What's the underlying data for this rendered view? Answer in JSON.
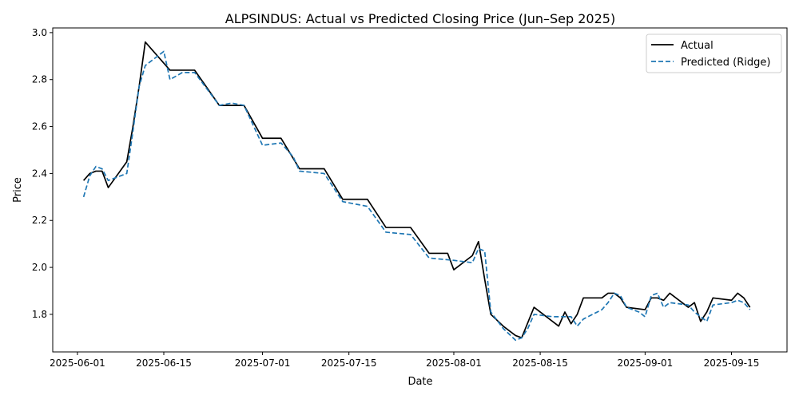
{
  "chart_data": {
    "type": "line",
    "title": "ALPSINDUS: Actual vs Predicted Closing Price (Jun–Sep 2025)",
    "xlabel": "Date",
    "ylabel": "Price",
    "xlim": [
      "2025-05-28",
      "2025-09-24"
    ],
    "ylim": [
      1.64,
      3.02
    ],
    "x_ticks": [
      "2025-06-01",
      "2025-06-15",
      "2025-07-01",
      "2025-07-15",
      "2025-08-01",
      "2025-08-15",
      "2025-09-01",
      "2025-09-15"
    ],
    "y_ticks": [
      1.8,
      2.0,
      2.2,
      2.4,
      2.6,
      2.8,
      3.0
    ],
    "grid": false,
    "legend_position": "top-right",
    "series": [
      {
        "name": "Actual",
        "color": "#000000",
        "style": "solid",
        "points": [
          [
            "2025-06-02",
            2.37
          ],
          [
            "2025-06-03",
            2.4
          ],
          [
            "2025-06-04",
            2.41
          ],
          [
            "2025-06-05",
            2.41
          ],
          [
            "2025-06-06",
            2.34
          ],
          [
            "2025-06-09",
            2.45
          ],
          [
            "2025-06-10",
            2.6
          ],
          [
            "2025-06-11",
            2.77
          ],
          [
            "2025-06-12",
            2.96
          ],
          [
            "2025-06-16",
            2.84
          ],
          [
            "2025-06-20",
            2.84
          ],
          [
            "2025-06-24",
            2.69
          ],
          [
            "2025-06-28",
            2.69
          ],
          [
            "2025-07-01",
            2.55
          ],
          [
            "2025-07-04",
            2.55
          ],
          [
            "2025-07-07",
            2.42
          ],
          [
            "2025-07-11",
            2.42
          ],
          [
            "2025-07-14",
            2.29
          ],
          [
            "2025-07-18",
            2.29
          ],
          [
            "2025-07-21",
            2.17
          ],
          [
            "2025-07-25",
            2.17
          ],
          [
            "2025-07-28",
            2.06
          ],
          [
            "2025-07-31",
            2.06
          ],
          [
            "2025-08-01",
            1.99
          ],
          [
            "2025-08-04",
            2.05
          ],
          [
            "2025-08-05",
            2.11
          ],
          [
            "2025-08-06",
            1.95
          ],
          [
            "2025-08-07",
            1.8
          ],
          [
            "2025-08-09",
            1.75
          ],
          [
            "2025-08-11",
            1.71
          ],
          [
            "2025-08-12",
            1.7
          ],
          [
            "2025-08-14",
            1.83
          ],
          [
            "2025-08-18",
            1.75
          ],
          [
            "2025-08-19",
            1.81
          ],
          [
            "2025-08-20",
            1.76
          ],
          [
            "2025-08-21",
            1.8
          ],
          [
            "2025-08-22",
            1.87
          ],
          [
            "2025-08-25",
            1.87
          ],
          [
            "2025-08-26",
            1.89
          ],
          [
            "2025-08-27",
            1.89
          ],
          [
            "2025-08-28",
            1.87
          ],
          [
            "2025-08-29",
            1.83
          ],
          [
            "2025-09-01",
            1.82
          ],
          [
            "2025-09-02",
            1.87
          ],
          [
            "2025-09-03",
            1.87
          ],
          [
            "2025-09-04",
            1.86
          ],
          [
            "2025-09-05",
            1.89
          ],
          [
            "2025-09-08",
            1.83
          ],
          [
            "2025-09-09",
            1.85
          ],
          [
            "2025-09-10",
            1.77
          ],
          [
            "2025-09-11",
            1.81
          ],
          [
            "2025-09-12",
            1.87
          ],
          [
            "2025-09-15",
            1.86
          ],
          [
            "2025-09-16",
            1.89
          ],
          [
            "2025-09-17",
            1.87
          ],
          [
            "2025-09-18",
            1.83
          ]
        ]
      },
      {
        "name": "Predicted (Ridge)",
        "color": "#1f77b4",
        "style": "dashed",
        "points": [
          [
            "2025-06-02",
            2.3
          ],
          [
            "2025-06-03",
            2.39
          ],
          [
            "2025-06-04",
            2.43
          ],
          [
            "2025-06-05",
            2.42
          ],
          [
            "2025-06-06",
            2.37
          ],
          [
            "2025-06-09",
            2.4
          ],
          [
            "2025-06-10",
            2.58
          ],
          [
            "2025-06-11",
            2.77
          ],
          [
            "2025-06-12",
            2.86
          ],
          [
            "2025-06-15",
            2.92
          ],
          [
            "2025-06-16",
            2.8
          ],
          [
            "2025-06-18",
            2.83
          ],
          [
            "2025-06-20",
            2.83
          ],
          [
            "2025-06-22",
            2.76
          ],
          [
            "2025-06-24",
            2.69
          ],
          [
            "2025-06-26",
            2.7
          ],
          [
            "2025-06-28",
            2.69
          ],
          [
            "2025-07-01",
            2.52
          ],
          [
            "2025-07-04",
            2.53
          ],
          [
            "2025-07-06",
            2.47
          ],
          [
            "2025-07-07",
            2.41
          ],
          [
            "2025-07-11",
            2.4
          ],
          [
            "2025-07-14",
            2.28
          ],
          [
            "2025-07-18",
            2.26
          ],
          [
            "2025-07-21",
            2.15
          ],
          [
            "2025-07-25",
            2.14
          ],
          [
            "2025-07-28",
            2.04
          ],
          [
            "2025-08-01",
            2.03
          ],
          [
            "2025-08-04",
            2.02
          ],
          [
            "2025-08-05",
            2.08
          ],
          [
            "2025-08-06",
            2.07
          ],
          [
            "2025-08-07",
            1.81
          ],
          [
            "2025-08-09",
            1.74
          ],
          [
            "2025-08-11",
            1.69
          ],
          [
            "2025-08-12",
            1.7
          ],
          [
            "2025-08-13",
            1.74
          ],
          [
            "2025-08-14",
            1.8
          ],
          [
            "2025-08-17",
            1.79
          ],
          [
            "2025-08-19",
            1.79
          ],
          [
            "2025-08-20",
            1.79
          ],
          [
            "2025-08-21",
            1.75
          ],
          [
            "2025-08-22",
            1.78
          ],
          [
            "2025-08-25",
            1.82
          ],
          [
            "2025-08-26",
            1.85
          ],
          [
            "2025-08-27",
            1.89
          ],
          [
            "2025-08-28",
            1.88
          ],
          [
            "2025-08-29",
            1.83
          ],
          [
            "2025-08-31",
            1.81
          ],
          [
            "2025-09-01",
            1.79
          ],
          [
            "2025-09-02",
            1.88
          ],
          [
            "2025-09-03",
            1.89
          ],
          [
            "2025-09-04",
            1.83
          ],
          [
            "2025-09-05",
            1.85
          ],
          [
            "2025-09-08",
            1.84
          ],
          [
            "2025-09-09",
            1.81
          ],
          [
            "2025-09-10",
            1.79
          ],
          [
            "2025-09-11",
            1.77
          ],
          [
            "2025-09-12",
            1.84
          ],
          [
            "2025-09-15",
            1.85
          ],
          [
            "2025-09-16",
            1.86
          ],
          [
            "2025-09-17",
            1.85
          ],
          [
            "2025-09-18",
            1.82
          ]
        ]
      }
    ]
  }
}
